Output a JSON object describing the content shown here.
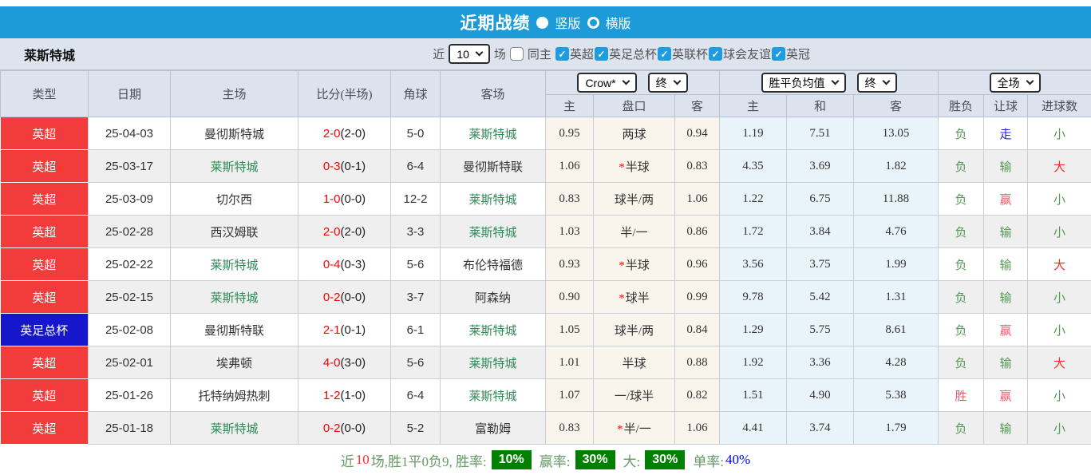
{
  "title_bar": {
    "title": "近期战绩",
    "vertical_label": "竖版",
    "horizontal_label": "横版",
    "selected": "vertical",
    "bar_color": "#1d9bd9"
  },
  "filter_bar": {
    "team": "莱斯特城",
    "near_label": "近",
    "count_value": "10",
    "matches_label": "场",
    "same_venue_label": "同主",
    "same_venue_checked": false,
    "leagues": [
      {
        "label": "英超",
        "checked": true
      },
      {
        "label": "英足总杯",
        "checked": true
      },
      {
        "label": "英联杯",
        "checked": true
      },
      {
        "label": "球会友谊",
        "checked": true
      },
      {
        "label": "英冠",
        "checked": true
      }
    ]
  },
  "table": {
    "headers": {
      "type": "类型",
      "date": "日期",
      "home": "主场",
      "score": "比分(半场)",
      "corners": "角球",
      "away": "客场",
      "odds_select": "Crow*",
      "odds_final_select": "终",
      "odds_sub": [
        "主",
        "盘口",
        "客"
      ],
      "avg_select": "胜平负均值",
      "avg_final_select": "终",
      "avg_sub": [
        "主",
        "和",
        "客"
      ],
      "scope_select": "全场",
      "result_sub": [
        "胜负",
        "让球",
        "进球数"
      ]
    },
    "rows": [
      {
        "league": "英超",
        "league_color": "red",
        "date": "25-04-03",
        "home": "曼彻斯特城",
        "home_active": false,
        "score": "2-0",
        "half": "(2-0)",
        "corners": "5-0",
        "away": "莱斯特城",
        "away_active": true,
        "odds_home": "0.95",
        "handicap": "两球",
        "handicap_star": false,
        "odds_away": "0.94",
        "avg_home": "1.19",
        "avg_draw": "7.51",
        "avg_away": "13.05",
        "outcome": "负",
        "outcome_color": "green",
        "handicap_result": "走",
        "handicap_result_color": "blue",
        "goals": "小",
        "goals_color": "green"
      },
      {
        "league": "英超",
        "league_color": "red",
        "date": "25-03-17",
        "home": "莱斯特城",
        "home_active": true,
        "score": "0-3",
        "half": "(0-1)",
        "corners": "6-4",
        "away": "曼彻斯特联",
        "away_active": false,
        "odds_home": "1.06",
        "handicap": "半球",
        "handicap_star": true,
        "odds_away": "0.83",
        "avg_home": "4.35",
        "avg_draw": "3.69",
        "avg_away": "1.82",
        "outcome": "负",
        "outcome_color": "green",
        "handicap_result": "输",
        "handicap_result_color": "green",
        "goals": "大",
        "goals_color": "red"
      },
      {
        "league": "英超",
        "league_color": "red",
        "date": "25-03-09",
        "home": "切尔西",
        "home_active": false,
        "score": "1-0",
        "half": "(0-0)",
        "corners": "12-2",
        "away": "莱斯特城",
        "away_active": true,
        "odds_home": "0.83",
        "handicap": "球半/两",
        "handicap_star": false,
        "odds_away": "1.06",
        "avg_home": "1.22",
        "avg_draw": "6.75",
        "avg_away": "11.88",
        "outcome": "负",
        "outcome_color": "green",
        "handicap_result": "赢",
        "handicap_result_color": "pink",
        "goals": "小",
        "goals_color": "green"
      },
      {
        "league": "英超",
        "league_color": "red",
        "date": "25-02-28",
        "home": "西汉姆联",
        "home_active": false,
        "score": "2-0",
        "half": "(2-0)",
        "corners": "3-3",
        "away": "莱斯特城",
        "away_active": true,
        "odds_home": "1.03",
        "handicap": "半/一",
        "handicap_star": false,
        "odds_away": "0.86",
        "avg_home": "1.72",
        "avg_draw": "3.84",
        "avg_away": "4.76",
        "outcome": "负",
        "outcome_color": "green",
        "handicap_result": "输",
        "handicap_result_color": "green",
        "goals": "小",
        "goals_color": "green"
      },
      {
        "league": "英超",
        "league_color": "red",
        "date": "25-02-22",
        "home": "莱斯特城",
        "home_active": true,
        "score": "0-4",
        "half": "(0-3)",
        "corners": "5-6",
        "away": "布伦特福德",
        "away_active": false,
        "odds_home": "0.93",
        "handicap": "半球",
        "handicap_star": true,
        "odds_away": "0.96",
        "avg_home": "3.56",
        "avg_draw": "3.75",
        "avg_away": "1.99",
        "outcome": "负",
        "outcome_color": "green",
        "handicap_result": "输",
        "handicap_result_color": "green",
        "goals": "大",
        "goals_color": "red"
      },
      {
        "league": "英超",
        "league_color": "red",
        "date": "25-02-15",
        "home": "莱斯特城",
        "home_active": true,
        "score": "0-2",
        "half": "(0-0)",
        "corners": "3-7",
        "away": "阿森纳",
        "away_active": false,
        "odds_home": "0.90",
        "handicap": "球半",
        "handicap_star": true,
        "odds_away": "0.99",
        "avg_home": "9.78",
        "avg_draw": "5.42",
        "avg_away": "1.31",
        "outcome": "负",
        "outcome_color": "green",
        "handicap_result": "输",
        "handicap_result_color": "green",
        "goals": "小",
        "goals_color": "green"
      },
      {
        "league": "英足总杯",
        "league_color": "blue",
        "date": "25-02-08",
        "home": "曼彻斯特联",
        "home_active": false,
        "score": "2-1",
        "half": "(0-1)",
        "corners": "6-1",
        "away": "莱斯特城",
        "away_active": true,
        "odds_home": "1.05",
        "handicap": "球半/两",
        "handicap_star": false,
        "odds_away": "0.84",
        "avg_home": "1.29",
        "avg_draw": "5.75",
        "avg_away": "8.61",
        "outcome": "负",
        "outcome_color": "green",
        "handicap_result": "赢",
        "handicap_result_color": "pink",
        "goals": "小",
        "goals_color": "green"
      },
      {
        "league": "英超",
        "league_color": "red",
        "date": "25-02-01",
        "home": "埃弗顿",
        "home_active": false,
        "score": "4-0",
        "half": "(3-0)",
        "corners": "5-6",
        "away": "莱斯特城",
        "away_active": true,
        "odds_home": "1.01",
        "handicap": "半球",
        "handicap_star": false,
        "odds_away": "0.88",
        "avg_home": "1.92",
        "avg_draw": "3.36",
        "avg_away": "4.28",
        "outcome": "负",
        "outcome_color": "green",
        "handicap_result": "输",
        "handicap_result_color": "green",
        "goals": "大",
        "goals_color": "red"
      },
      {
        "league": "英超",
        "league_color": "red",
        "date": "25-01-26",
        "home": "托特纳姆热刺",
        "home_active": false,
        "score": "1-2",
        "half": "(1-0)",
        "corners": "6-4",
        "away": "莱斯特城",
        "away_active": true,
        "odds_home": "1.07",
        "handicap": "一/球半",
        "handicap_star": false,
        "odds_away": "0.82",
        "avg_home": "1.51",
        "avg_draw": "4.90",
        "avg_away": "5.38",
        "outcome": "胜",
        "outcome_color": "pink",
        "handicap_result": "赢",
        "handicap_result_color": "pink",
        "goals": "小",
        "goals_color": "green"
      },
      {
        "league": "英超",
        "league_color": "red",
        "date": "25-01-18",
        "home": "莱斯特城",
        "home_active": true,
        "score": "0-2",
        "half": "(0-0)",
        "corners": "5-2",
        "away": "富勒姆",
        "away_active": false,
        "odds_home": "0.83",
        "handicap": "半/一",
        "handicap_star": true,
        "odds_away": "1.06",
        "avg_home": "4.41",
        "avg_draw": "3.74",
        "avg_away": "1.79",
        "outcome": "负",
        "outcome_color": "green",
        "handicap_result": "输",
        "handicap_result_color": "green",
        "goals": "小",
        "goals_color": "green"
      }
    ]
  },
  "footer": {
    "near_label": "近",
    "count": "10",
    "summary": "场,胜1平0负9, 胜率:",
    "win_rate_badge": "10%",
    "profit_label": "赢率:",
    "profit_badge": "30%",
    "big_label": "大:",
    "big_badge": "30%",
    "single_label": "单率:",
    "single_value": "40%"
  }
}
